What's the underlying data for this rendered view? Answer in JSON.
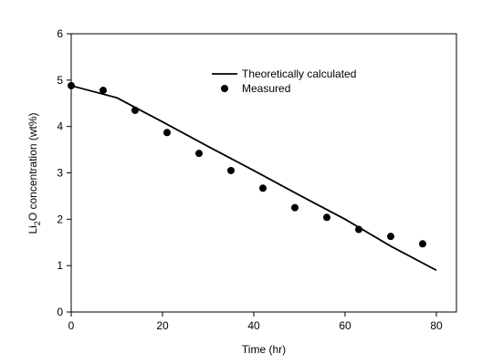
{
  "chart_data": {
    "type": "line",
    "xlabel": "Time (hr)",
    "ylabel": [
      "Li",
      "2",
      "O concentration (wt%)"
    ],
    "xlim": [
      0,
      84.4
    ],
    "xticks": [
      0,
      20,
      40,
      60,
      80
    ],
    "ylim": [
      0,
      6
    ],
    "yticks": [
      0,
      1,
      2,
      3,
      4,
      5,
      6
    ],
    "series": [
      {
        "name": "Theoretically calculated",
        "color": "#000000",
        "style": "line",
        "x": [
          0,
          10,
          20,
          30,
          40,
          50,
          60,
          70,
          80
        ],
        "values": [
          4.88,
          4.62,
          4.1,
          3.57,
          3.05,
          2.52,
          2.0,
          1.42,
          0.9
        ]
      },
      {
        "name": "Measured",
        "color": "#000000",
        "style": "marker",
        "x": [
          0,
          7,
          14,
          21,
          28,
          35,
          42,
          49,
          56,
          63,
          70,
          77
        ],
        "values": [
          4.88,
          4.78,
          4.35,
          3.87,
          3.42,
          3.05,
          2.67,
          2.25,
          2.04,
          1.78,
          1.63,
          1.47
        ]
      }
    ]
  }
}
